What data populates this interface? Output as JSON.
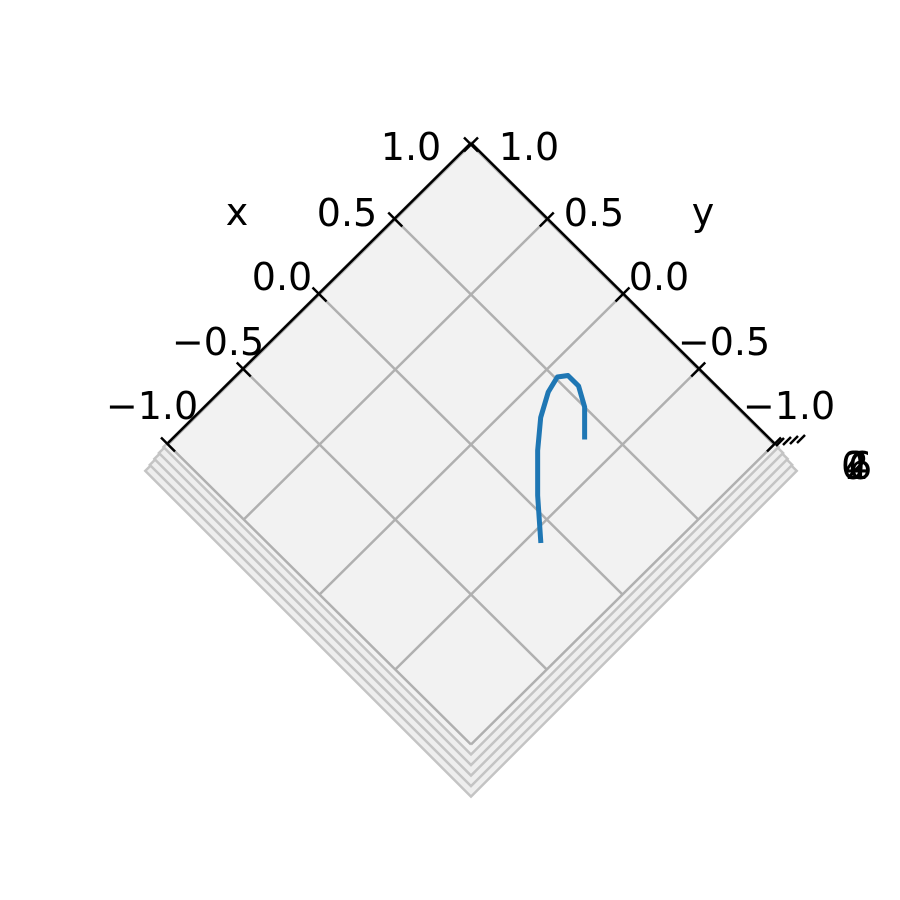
{
  "chart_data": {
    "type": "line",
    "projection": "3d",
    "view": "looking down the z axis, rotated 45 degrees",
    "xlabel": "x",
    "ylabel": "y",
    "zlabel": "",
    "xlim": [
      -1.0,
      1.0
    ],
    "ylim": [
      -1.0,
      1.0
    ],
    "x_tick_labels": [
      "−1.0",
      "−0.5",
      "0.0",
      "0.5",
      "1.0"
    ],
    "y_tick_labels": [
      "−1.0",
      "−0.5",
      "0.0",
      "0.5",
      "1.0"
    ],
    "z_tick_labels": [
      "0",
      "2",
      "4",
      "6"
    ],
    "grid": true,
    "pane_color": "#f2f2f2",
    "grid_color": "#b0b0b0",
    "series": [
      {
        "color": "#1f77b4",
        "x": [
          -0.09,
          0.05,
          0.2,
          0.32,
          0.43,
          0.51,
          0.55,
          0.55,
          0.5,
          0.4
        ],
        "y": [
          -0.55,
          -0.39,
          -0.24,
          -0.14,
          -0.08,
          -0.06,
          -0.09,
          -0.16,
          -0.25,
          -0.35
        ]
      }
    ]
  }
}
